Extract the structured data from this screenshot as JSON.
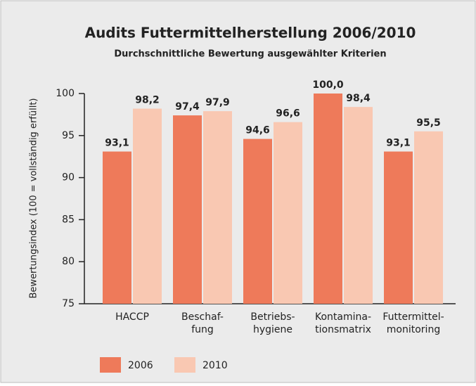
{
  "chart_data": {
    "type": "bar",
    "title": "Audits Futtermittelherstellung 2006/2010",
    "subtitle": "Durchschnittliche Bewertung ausgewählter Kriterien",
    "y_label": "Bewertungsindex (100 = vollständig erfüllt)",
    "categories": [
      [
        "HACCP"
      ],
      [
        "Beschaf-",
        "fung"
      ],
      [
        "Betriebs-",
        "hygiene"
      ],
      [
        "Kontamina-",
        "tionsmatrix"
      ],
      [
        "Futtermittel-",
        "monitoring"
      ]
    ],
    "series": [
      {
        "name": "2006",
        "color": "#ee7a5a",
        "values": [
          93.1,
          97.4,
          94.6,
          100.0,
          93.1
        ],
        "value_labels": [
          "93,1",
          "97,4",
          "94,6",
          "100,0",
          "93,1"
        ]
      },
      {
        "name": "2010",
        "color": "#f9c8b2",
        "values": [
          98.2,
          97.9,
          96.6,
          98.4,
          95.5
        ],
        "value_labels": [
          "98,2",
          "97,9",
          "96,6",
          "98,4",
          "95,5"
        ]
      }
    ],
    "ylim": [
      75,
      100
    ],
    "yticks": [
      75,
      80,
      85,
      90,
      95,
      100
    ],
    "grid": false
  }
}
